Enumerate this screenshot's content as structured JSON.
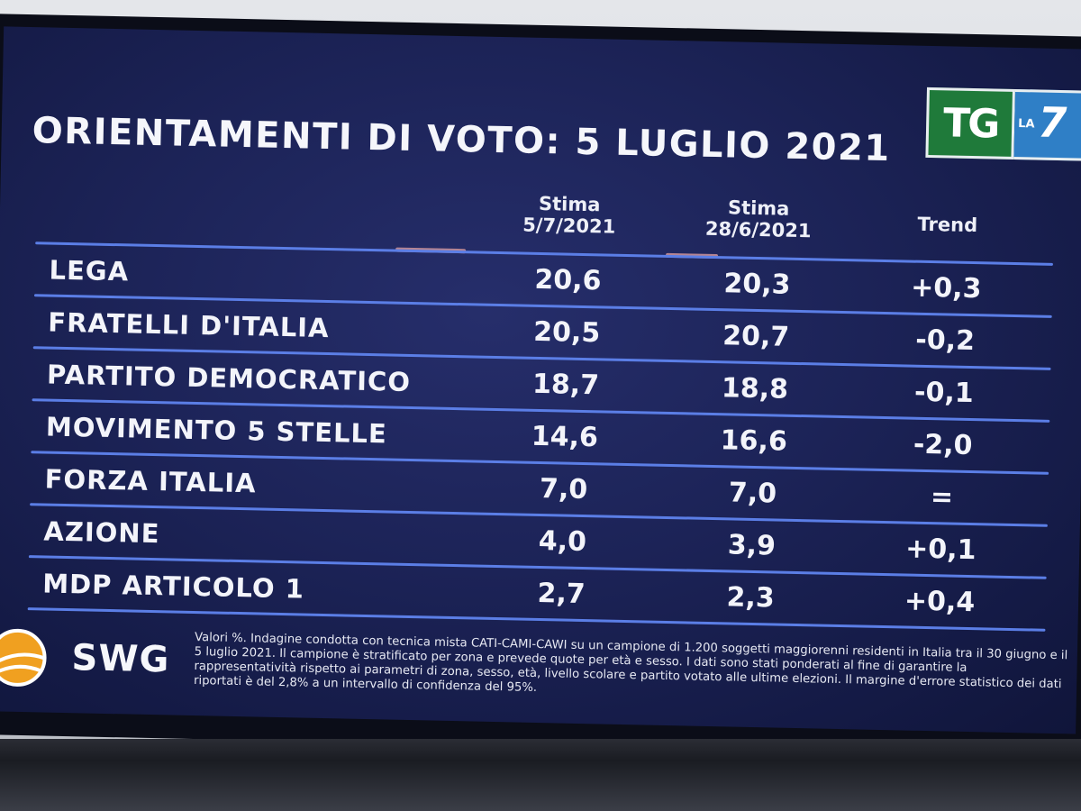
{
  "title": "ORIENTAMENTI DI VOTO: 5 LUGLIO 2021",
  "broadcaster": {
    "tg": "TG",
    "la": "LA",
    "seven": "7"
  },
  "chart_data": {
    "type": "table",
    "columns": [
      {
        "line1": "Stima",
        "line2": "5/7/2021"
      },
      {
        "line1": "Stima",
        "line2": "28/6/2021"
      },
      {
        "line1": "Trend",
        "line2": ""
      }
    ],
    "rows": [
      {
        "party": "LEGA",
        "stima_5_7": "20,6",
        "stima_28_6": "20,3",
        "trend": "+0,3"
      },
      {
        "party": "FRATELLI D'ITALIA",
        "stima_5_7": "20,5",
        "stima_28_6": "20,7",
        "trend": "-0,2"
      },
      {
        "party": "PARTITO DEMOCRATICO",
        "stima_5_7": "18,7",
        "stima_28_6": "18,8",
        "trend": "-0,1"
      },
      {
        "party": "MOVIMENTO 5 STELLE",
        "stima_5_7": "14,6",
        "stima_28_6": "16,6",
        "trend": "-2,0"
      },
      {
        "party": "FORZA ITALIA",
        "stima_5_7": "7,0",
        "stima_28_6": "7,0",
        "trend": "="
      },
      {
        "party": "AZIONE",
        "stima_5_7": "4,0",
        "stima_28_6": "3,9",
        "trend": "+0,1"
      },
      {
        "party": "MDP ARTICOLO 1",
        "stima_5_7": "2,7",
        "stima_28_6": "2,3",
        "trend": "+0,4"
      }
    ]
  },
  "source": {
    "brand": "SWG",
    "note": "Valori %. Indagine condotta con tecnica mista CATI-CAMI-CAWI su un campione di 1.200 soggetti maggiorenni residenti in Italia tra il 30 giugno e il 5 luglio 2021. Il campione è stratificato per zona e prevede quote per età e sesso. I dati sono stati ponderati al fine di garantire la rappresentatività rispetto ai parametri di zona, sesso, età, livello scolare e partito votato alle ultime elezioni. Il margine d'errore statistico dei dati riportati è del 2,8% a un intervallo di confidenza del 95%."
  },
  "colors": {
    "background": "#1c2357",
    "row_line": "#5b7ee6",
    "text": "#f3f4fa",
    "tg_green": "#1f7a3a",
    "la7_blue": "#2f7fc6"
  }
}
